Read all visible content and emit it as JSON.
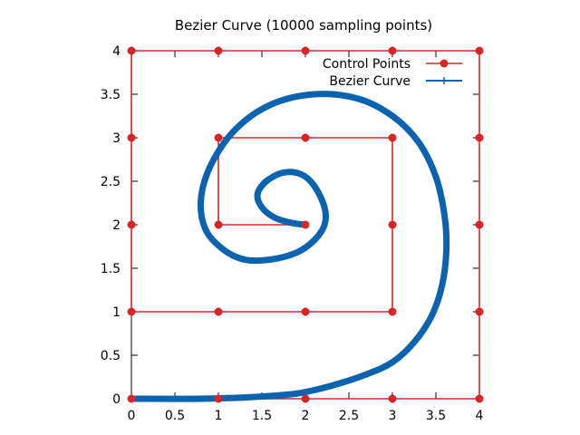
{
  "chart_data": {
    "type": "line",
    "title": "Bezier Curve (10000 sampling points)",
    "xlabel": "",
    "ylabel": "",
    "xlim": [
      0,
      4
    ],
    "ylim": [
      0,
      4
    ],
    "x_ticks": [
      "0",
      "0.5",
      "1",
      "1.5",
      "2",
      "2.5",
      "3",
      "3.5",
      "4"
    ],
    "y_ticks": [
      "0",
      "0.5",
      "1",
      "1.5",
      "2",
      "2.5",
      "3",
      "3.5",
      "4"
    ],
    "grid": false,
    "legend_position": "top-right",
    "series": [
      {
        "name": "Control Points",
        "style": "linespoints",
        "color": "#d62728",
        "points": [
          [
            0,
            0
          ],
          [
            1,
            0
          ],
          [
            2,
            0
          ],
          [
            3,
            0
          ],
          [
            4,
            0
          ],
          [
            4,
            1
          ],
          [
            4,
            2
          ],
          [
            4,
            3
          ],
          [
            4,
            4
          ],
          [
            3,
            4
          ],
          [
            2,
            4
          ],
          [
            1,
            4
          ],
          [
            0,
            4
          ],
          [
            0,
            3
          ],
          [
            0,
            2
          ],
          [
            0,
            1
          ],
          [
            1,
            1
          ],
          [
            2,
            1
          ],
          [
            3,
            1
          ],
          [
            3,
            2
          ],
          [
            3,
            3
          ],
          [
            2,
            3
          ],
          [
            1,
            3
          ],
          [
            1,
            2
          ],
          [
            2,
            2
          ]
        ]
      },
      {
        "name": "Bezier Curve",
        "style": "curve",
        "color": "#0b63b0",
        "points": [
          [
            0.0,
            0.0
          ],
          [
            0.8,
            0.0
          ],
          [
            1.4,
            0.02
          ],
          [
            1.9,
            0.06
          ],
          [
            2.3,
            0.15
          ],
          [
            2.7,
            0.28
          ],
          [
            3.0,
            0.42
          ],
          [
            3.25,
            0.65
          ],
          [
            3.45,
            0.95
          ],
          [
            3.57,
            1.3
          ],
          [
            3.62,
            1.7
          ],
          [
            3.6,
            2.1
          ],
          [
            3.5,
            2.55
          ],
          [
            3.3,
            2.95
          ],
          [
            3.0,
            3.25
          ],
          [
            2.6,
            3.45
          ],
          [
            2.1,
            3.5
          ],
          [
            1.6,
            3.38
          ],
          [
            1.2,
            3.1
          ],
          [
            0.92,
            2.7
          ],
          [
            0.8,
            2.3
          ],
          [
            0.85,
            1.95
          ],
          [
            1.05,
            1.72
          ],
          [
            1.3,
            1.6
          ],
          [
            1.6,
            1.6
          ],
          [
            1.9,
            1.68
          ],
          [
            2.1,
            1.82
          ],
          [
            2.22,
            2.0
          ],
          [
            2.22,
            2.2
          ],
          [
            2.1,
            2.45
          ],
          [
            1.95,
            2.58
          ],
          [
            1.75,
            2.6
          ],
          [
            1.55,
            2.5
          ],
          [
            1.45,
            2.35
          ],
          [
            1.5,
            2.2
          ],
          [
            1.65,
            2.08
          ],
          [
            1.85,
            2.02
          ],
          [
            2.0,
            2.0
          ]
        ]
      }
    ]
  }
}
